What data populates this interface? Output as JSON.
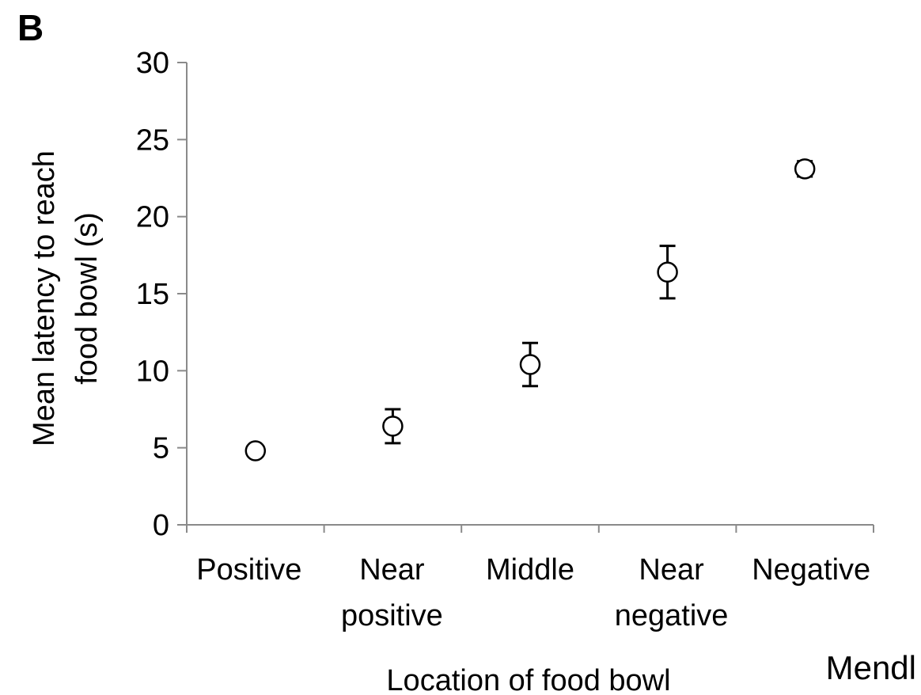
{
  "panel_label": "B",
  "credit": "Mendl",
  "chart_data": {
    "type": "scatter",
    "title": "",
    "xlabel": "Location of food bowl",
    "ylabel_lines": [
      "Mean latency to reach",
      "food bowl (s)"
    ],
    "ylim": [
      0,
      30
    ],
    "yticks": [
      0,
      5,
      10,
      15,
      20,
      25,
      30
    ],
    "grid": false,
    "categories": [
      {
        "lines": [
          "Positive"
        ]
      },
      {
        "lines": [
          "Near",
          "positive"
        ]
      },
      {
        "lines": [
          "Middle"
        ]
      },
      {
        "lines": [
          "Near",
          "negative"
        ]
      },
      {
        "lines": [
          "Negative"
        ]
      }
    ],
    "series": [
      {
        "marker": "open-circle",
        "values": [
          4.8,
          6.4,
          10.4,
          16.4,
          23.1
        ],
        "error_upper": [
          4.8,
          7.5,
          11.8,
          18.1,
          23.6
        ],
        "error_lower": [
          4.8,
          5.3,
          9.0,
          14.7,
          22.6
        ]
      }
    ]
  }
}
